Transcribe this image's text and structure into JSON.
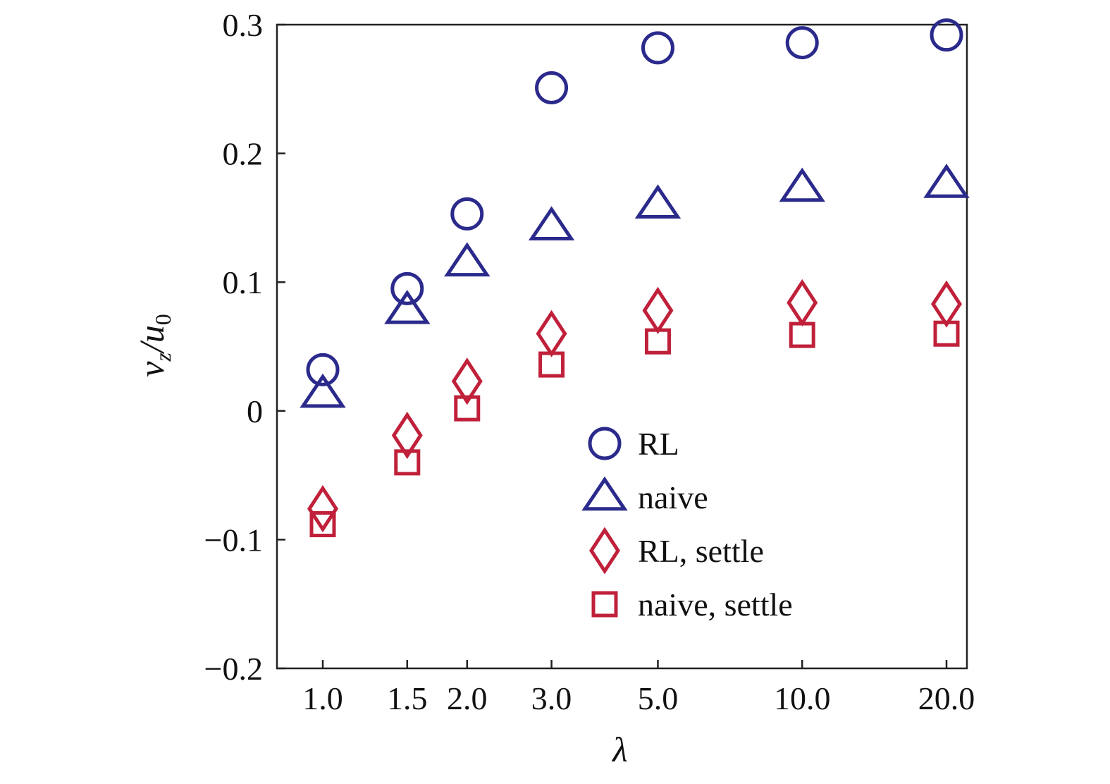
{
  "chart_data": {
    "type": "scatter",
    "title": "",
    "xlabel": "λ",
    "ylabel_main": "v",
    "ylabel_sub": "z",
    "ylabel_sep": "/u",
    "ylabel_sub2": "0",
    "x_categories": [
      "1.0",
      "1.5",
      "2.0",
      "3.0",
      "5.0",
      "10.0",
      "20.0"
    ],
    "x_scale": "log",
    "x_values": [
      1.0,
      1.5,
      2.0,
      3.0,
      5.0,
      10.0,
      20.0
    ],
    "ylim": [
      -0.2,
      0.3
    ],
    "yticks": [
      -0.2,
      -0.1,
      0,
      0.1,
      0.2,
      0.3
    ],
    "ytick_labels": [
      "−0.2",
      "−0.1",
      "0",
      "0.1",
      "0.2",
      "0.3"
    ],
    "grid": false,
    "legend_position": "center-right",
    "series": [
      {
        "name": "RL",
        "marker": "circle",
        "color": "#2b2a8c",
        "values": [
          0.032,
          0.095,
          0.153,
          0.251,
          0.282,
          0.286,
          0.292
        ]
      },
      {
        "name": "naive",
        "marker": "triangle",
        "color": "#2b2a8c",
        "values": [
          0.013,
          0.078,
          0.115,
          0.143,
          0.16,
          0.173,
          0.176
        ]
      },
      {
        "name": "RL, settle",
        "marker": "diamond",
        "color": "#c0203a",
        "values": [
          -0.076,
          -0.019,
          0.023,
          0.06,
          0.078,
          0.084,
          0.083
        ]
      },
      {
        "name": "naive, settle",
        "marker": "square",
        "color": "#c0203a",
        "values": [
          -0.088,
          -0.04,
          0.002,
          0.036,
          0.054,
          0.059,
          0.06
        ]
      }
    ]
  }
}
